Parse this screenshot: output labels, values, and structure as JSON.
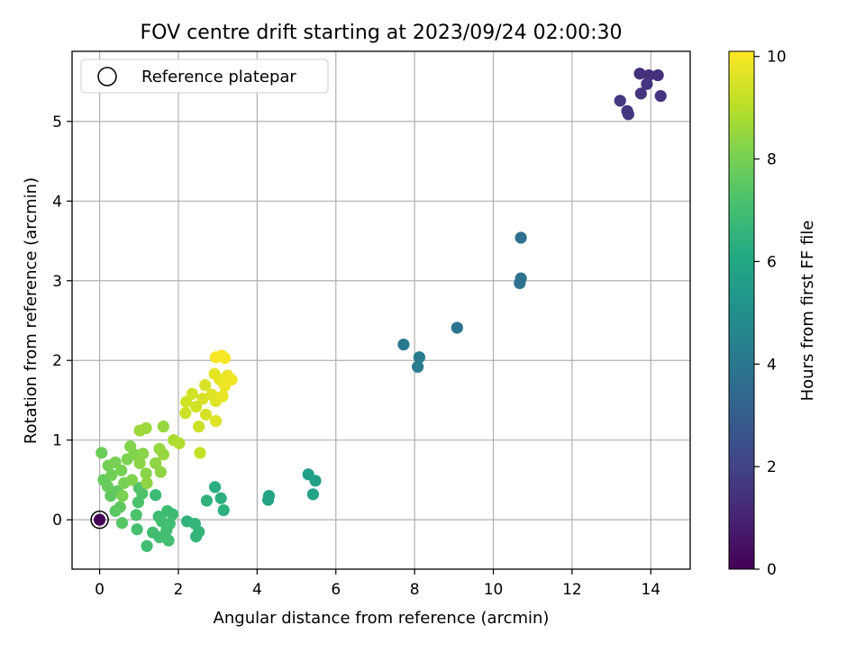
{
  "chart_data": {
    "type": "scatter",
    "title": "FOV centre drift starting at 2023/09/24 02:00:30",
    "xlabel": "Angular distance from reference (arcmin)",
    "ylabel": "Rotation from reference (arcmin)",
    "xlim": [
      -0.7,
      15.0
    ],
    "ylim": [
      -0.62,
      5.88
    ],
    "x_ticks": [
      0,
      2,
      4,
      6,
      8,
      10,
      12,
      14
    ],
    "y_ticks": [
      0,
      1,
      2,
      3,
      4,
      5
    ],
    "grid": true,
    "legend": {
      "position": "top-left",
      "entries": [
        "Reference platepar"
      ]
    },
    "reference_point": {
      "label": "Reference platepar",
      "x": 0,
      "y": 0
    },
    "colorbar": {
      "label": "Hours from first FF file",
      "range": [
        0,
        10.1
      ],
      "ticks": [
        0,
        2,
        4,
        6,
        8,
        10
      ],
      "colormap": "viridis"
    },
    "points": [
      {
        "x": 0.0,
        "y": 0.0,
        "c": 0.05
      },
      {
        "x": 13.72,
        "y": 5.6,
        "c": 1.4
      },
      {
        "x": 13.95,
        "y": 5.58,
        "c": 1.4
      },
      {
        "x": 14.18,
        "y": 5.58,
        "c": 1.4
      },
      {
        "x": 13.9,
        "y": 5.47,
        "c": 1.5
      },
      {
        "x": 13.75,
        "y": 5.35,
        "c": 1.5
      },
      {
        "x": 14.25,
        "y": 5.32,
        "c": 1.5
      },
      {
        "x": 13.22,
        "y": 5.26,
        "c": 1.6
      },
      {
        "x": 13.4,
        "y": 5.13,
        "c": 1.6
      },
      {
        "x": 13.43,
        "y": 5.09,
        "c": 1.6
      },
      {
        "x": 10.7,
        "y": 3.54,
        "c": 3.7
      },
      {
        "x": 10.7,
        "y": 3.03,
        "c": 3.8
      },
      {
        "x": 10.67,
        "y": 2.97,
        "c": 3.8
      },
      {
        "x": 9.08,
        "y": 2.41,
        "c": 3.9
      },
      {
        "x": 7.72,
        "y": 2.2,
        "c": 4.1
      },
      {
        "x": 8.12,
        "y": 2.04,
        "c": 4.2
      },
      {
        "x": 8.08,
        "y": 1.92,
        "c": 4.2
      },
      {
        "x": 5.3,
        "y": 0.57,
        "c": 5.7
      },
      {
        "x": 5.48,
        "y": 0.49,
        "c": 5.7
      },
      {
        "x": 5.42,
        "y": 0.32,
        "c": 5.8
      },
      {
        "x": 4.3,
        "y": 0.3,
        "c": 5.9
      },
      {
        "x": 4.28,
        "y": 0.25,
        "c": 5.9
      },
      {
        "x": 2.93,
        "y": 0.41,
        "c": 6.3
      },
      {
        "x": 3.08,
        "y": 0.27,
        "c": 6.4
      },
      {
        "x": 2.72,
        "y": 0.24,
        "c": 6.5
      },
      {
        "x": 3.15,
        "y": 0.12,
        "c": 6.4
      },
      {
        "x": 2.22,
        "y": -0.02,
        "c": 6.5
      },
      {
        "x": 2.42,
        "y": -0.05,
        "c": 6.6
      },
      {
        "x": 2.52,
        "y": -0.15,
        "c": 6.6
      },
      {
        "x": 2.45,
        "y": -0.21,
        "c": 6.6
      },
      {
        "x": 1.42,
        "y": 0.31,
        "c": 6.8
      },
      {
        "x": 1.5,
        "y": 0.04,
        "c": 6.9
      },
      {
        "x": 1.72,
        "y": 0.11,
        "c": 6.9
      },
      {
        "x": 1.85,
        "y": 0.07,
        "c": 6.9
      },
      {
        "x": 1.58,
        "y": -0.02,
        "c": 7.0
      },
      {
        "x": 1.78,
        "y": -0.05,
        "c": 7.0
      },
      {
        "x": 1.35,
        "y": -0.16,
        "c": 7.0
      },
      {
        "x": 1.52,
        "y": -0.22,
        "c": 7.0
      },
      {
        "x": 1.7,
        "y": -0.13,
        "c": 7.0
      },
      {
        "x": 1.75,
        "y": -0.26,
        "c": 7.0
      },
      {
        "x": 1.2,
        "y": -0.33,
        "c": 7.0
      },
      {
        "x": 0.95,
        "y": -0.12,
        "c": 7.1
      },
      {
        "x": 0.93,
        "y": 0.06,
        "c": 7.2
      },
      {
        "x": 0.98,
        "y": 0.22,
        "c": 7.2
      },
      {
        "x": 1.08,
        "y": 0.33,
        "c": 7.3
      },
      {
        "x": 1.0,
        "y": 0.4,
        "c": 7.3
      },
      {
        "x": 0.57,
        "y": -0.04,
        "c": 7.4
      },
      {
        "x": 0.4,
        "y": 0.11,
        "c": 7.5
      },
      {
        "x": 0.52,
        "y": 0.16,
        "c": 7.6
      },
      {
        "x": 0.28,
        "y": 0.3,
        "c": 7.6
      },
      {
        "x": 0.45,
        "y": 0.36,
        "c": 7.6
      },
      {
        "x": 0.2,
        "y": 0.42,
        "c": 7.7
      },
      {
        "x": 0.1,
        "y": 0.5,
        "c": 7.7
      },
      {
        "x": 0.05,
        "y": 0.84,
        "c": 7.8
      },
      {
        "x": 0.22,
        "y": 0.68,
        "c": 7.9
      },
      {
        "x": 0.3,
        "y": 0.56,
        "c": 7.9
      },
      {
        "x": 0.4,
        "y": 0.72,
        "c": 8.0
      },
      {
        "x": 0.55,
        "y": 0.62,
        "c": 8.0
      },
      {
        "x": 0.62,
        "y": 0.46,
        "c": 8.0
      },
      {
        "x": 0.58,
        "y": 0.3,
        "c": 8.1
      },
      {
        "x": 0.7,
        "y": 0.76,
        "c": 8.1
      },
      {
        "x": 0.78,
        "y": 0.92,
        "c": 8.2
      },
      {
        "x": 0.88,
        "y": 0.82,
        "c": 8.2
      },
      {
        "x": 0.82,
        "y": 0.5,
        "c": 8.2
      },
      {
        "x": 1.02,
        "y": 0.71,
        "c": 8.3
      },
      {
        "x": 1.1,
        "y": 0.83,
        "c": 8.3
      },
      {
        "x": 1.18,
        "y": 0.58,
        "c": 8.3
      },
      {
        "x": 1.2,
        "y": 0.46,
        "c": 8.4
      },
      {
        "x": 1.42,
        "y": 0.71,
        "c": 8.4
      },
      {
        "x": 1.55,
        "y": 0.6,
        "c": 8.4
      },
      {
        "x": 1.62,
        "y": 0.82,
        "c": 8.5
      },
      {
        "x": 1.52,
        "y": 0.89,
        "c": 8.5
      },
      {
        "x": 1.62,
        "y": 1.17,
        "c": 8.5
      },
      {
        "x": 1.02,
        "y": 1.12,
        "c": 8.6
      },
      {
        "x": 1.18,
        "y": 1.15,
        "c": 8.6
      },
      {
        "x": 1.88,
        "y": 1.0,
        "c": 8.8
      },
      {
        "x": 2.02,
        "y": 0.96,
        "c": 8.9
      },
      {
        "x": 2.55,
        "y": 0.84,
        "c": 9.2
      },
      {
        "x": 2.52,
        "y": 1.17,
        "c": 9.3
      },
      {
        "x": 2.18,
        "y": 1.34,
        "c": 9.3
      },
      {
        "x": 2.2,
        "y": 1.48,
        "c": 9.4
      },
      {
        "x": 2.35,
        "y": 1.58,
        "c": 9.4
      },
      {
        "x": 2.45,
        "y": 1.42,
        "c": 9.4
      },
      {
        "x": 2.62,
        "y": 1.52,
        "c": 9.5
      },
      {
        "x": 2.7,
        "y": 1.32,
        "c": 9.5
      },
      {
        "x": 2.68,
        "y": 1.69,
        "c": 9.5
      },
      {
        "x": 2.85,
        "y": 1.57,
        "c": 9.6
      },
      {
        "x": 2.95,
        "y": 1.24,
        "c": 9.6
      },
      {
        "x": 2.95,
        "y": 1.49,
        "c": 9.6
      },
      {
        "x": 2.92,
        "y": 1.83,
        "c": 9.7
      },
      {
        "x": 3.05,
        "y": 1.76,
        "c": 9.7
      },
      {
        "x": 3.12,
        "y": 1.55,
        "c": 9.8
      },
      {
        "x": 3.25,
        "y": 1.81,
        "c": 9.8
      },
      {
        "x": 3.35,
        "y": 1.76,
        "c": 9.9
      },
      {
        "x": 3.18,
        "y": 1.68,
        "c": 9.9
      },
      {
        "x": 2.95,
        "y": 2.04,
        "c": 10.0
      },
      {
        "x": 3.1,
        "y": 2.06,
        "c": 10.0
      },
      {
        "x": 3.18,
        "y": 2.03,
        "c": 10.0
      }
    ]
  }
}
